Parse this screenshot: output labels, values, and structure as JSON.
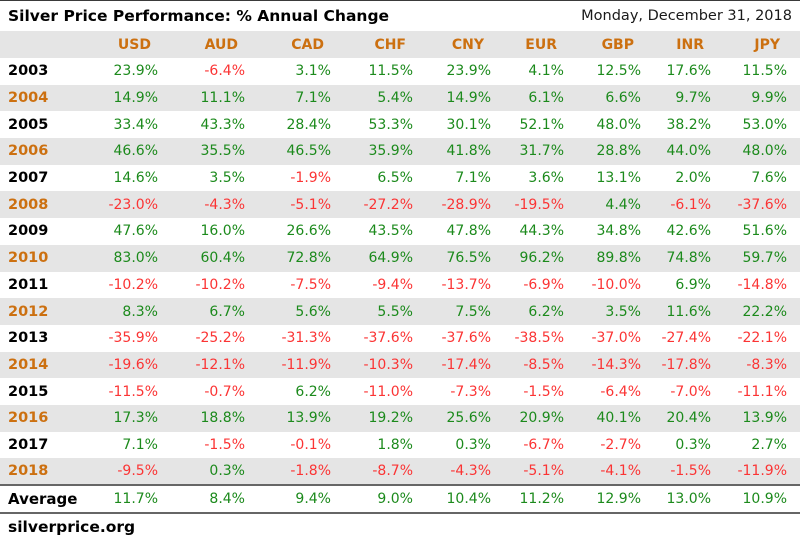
{
  "header": {
    "title": "Silver Price Performance: % Annual Change",
    "date": "Monday, December 31, 2018"
  },
  "footer": {
    "source": "silverprice.org"
  },
  "colors": {
    "positive_green": "#1c8a1c",
    "negative_red": "#fb3434",
    "accent_orange": "#cc7010",
    "stripe_gray": "#e5e5e5"
  },
  "chart_data": {
    "type": "table",
    "title": "Silver Price Performance: % Annual Change",
    "date_label": "Monday, December 31, 2018",
    "value_unit": "% annual change",
    "columns": [
      "USD",
      "AUD",
      "CAD",
      "CHF",
      "CNY",
      "EUR",
      "GBP",
      "INR",
      "JPY"
    ],
    "rows": [
      {
        "year": "2003",
        "values": [
          23.9,
          -6.4,
          3.1,
          11.5,
          23.9,
          4.1,
          12.5,
          17.6,
          11.5
        ]
      },
      {
        "year": "2004",
        "values": [
          14.9,
          11.1,
          7.1,
          5.4,
          14.9,
          6.1,
          6.6,
          9.7,
          9.9
        ]
      },
      {
        "year": "2005",
        "values": [
          33.4,
          43.3,
          28.4,
          53.3,
          30.1,
          52.1,
          48.0,
          38.2,
          53.0
        ]
      },
      {
        "year": "2006",
        "values": [
          46.6,
          35.5,
          46.5,
          35.9,
          41.8,
          31.7,
          28.8,
          44.0,
          48.0
        ]
      },
      {
        "year": "2007",
        "values": [
          14.6,
          3.5,
          -1.9,
          6.5,
          7.1,
          3.6,
          13.1,
          2.0,
          7.6
        ]
      },
      {
        "year": "2008",
        "values": [
          -23.0,
          -4.3,
          -5.1,
          -27.2,
          -28.9,
          -19.5,
          4.4,
          -6.1,
          -37.6
        ]
      },
      {
        "year": "2009",
        "values": [
          47.6,
          16.0,
          26.6,
          43.5,
          47.8,
          44.3,
          34.8,
          42.6,
          51.6
        ]
      },
      {
        "year": "2010",
        "values": [
          83.0,
          60.4,
          72.8,
          64.9,
          76.5,
          96.2,
          89.8,
          74.8,
          59.7
        ]
      },
      {
        "year": "2011",
        "values": [
          -10.2,
          -10.2,
          -7.5,
          -9.4,
          -13.7,
          -6.9,
          -10.0,
          6.9,
          -14.8
        ]
      },
      {
        "year": "2012",
        "values": [
          8.3,
          6.7,
          5.6,
          5.5,
          7.5,
          6.2,
          3.5,
          11.6,
          22.2
        ]
      },
      {
        "year": "2013",
        "values": [
          -35.9,
          -25.2,
          -31.3,
          -37.6,
          -37.6,
          -38.5,
          -37.0,
          -27.4,
          -22.1
        ]
      },
      {
        "year": "2014",
        "values": [
          -19.6,
          -12.1,
          -11.9,
          -10.3,
          -17.4,
          -8.5,
          -14.3,
          -17.8,
          -8.3
        ]
      },
      {
        "year": "2015",
        "values": [
          -11.5,
          -0.7,
          6.2,
          -11.0,
          -7.3,
          -1.5,
          -6.4,
          -7.0,
          -11.1
        ]
      },
      {
        "year": "2016",
        "values": [
          17.3,
          18.8,
          13.9,
          19.2,
          25.6,
          20.9,
          40.1,
          20.4,
          13.9
        ]
      },
      {
        "year": "2017",
        "values": [
          7.1,
          -1.5,
          -0.1,
          1.8,
          0.3,
          -6.7,
          -2.7,
          0.3,
          2.7
        ]
      },
      {
        "year": "2018",
        "values": [
          -9.5,
          0.3,
          -1.8,
          -8.7,
          -4.3,
          -5.1,
          -4.1,
          -1.5,
          -11.9
        ]
      }
    ],
    "average_row": {
      "label": "Average",
      "values": [
        11.7,
        8.4,
        9.4,
        9.0,
        10.4,
        11.2,
        12.9,
        13.0,
        10.9
      ]
    }
  }
}
